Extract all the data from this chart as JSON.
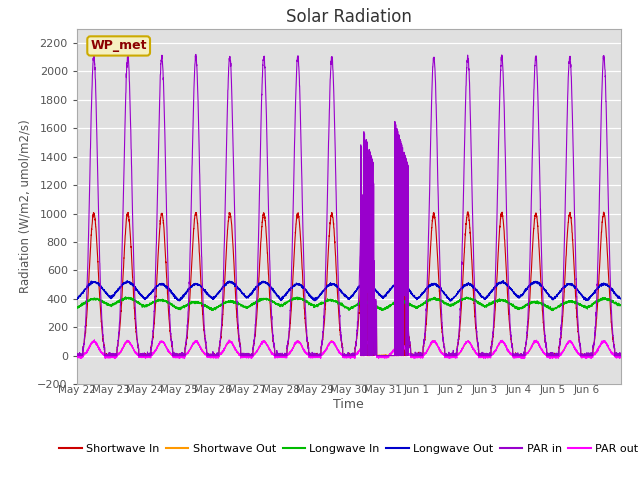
{
  "title": "Solar Radiation",
  "ylabel": "Radiation (W/m2, umol/m2/s)",
  "xlabel": "Time",
  "ylim": [
    -200,
    2300
  ],
  "yticks": [
    -200,
    0,
    200,
    400,
    600,
    800,
    1000,
    1200,
    1400,
    1600,
    1800,
    2000,
    2200
  ],
  "plot_bg_color": "#e0e0e0",
  "grid_color": "white",
  "station_label": "WP_met",
  "x_tick_labels": [
    "May 22",
    "May 23",
    "May 24",
    "May 25",
    "May 26",
    "May 27",
    "May 28",
    "May 29",
    "May 30",
    "May 31",
    "Jun 1",
    "Jun 2",
    "Jun 3",
    "Jun 4",
    "Jun 5",
    "Jun 6"
  ],
  "n_days": 16,
  "colors": {
    "shortwave_in": "#cc0000",
    "shortwave_out": "#ff9900",
    "longwave_in": "#00bb00",
    "longwave_out": "#0000cc",
    "par_in": "#9900cc",
    "par_out": "#ff00ff"
  },
  "labels": {
    "shortwave_in": "Shortwave In",
    "shortwave_out": "Shortwave Out",
    "longwave_in": "Longwave In",
    "longwave_out": "Longwave Out",
    "par_in": "PAR in",
    "par_out": "PAR out"
  }
}
